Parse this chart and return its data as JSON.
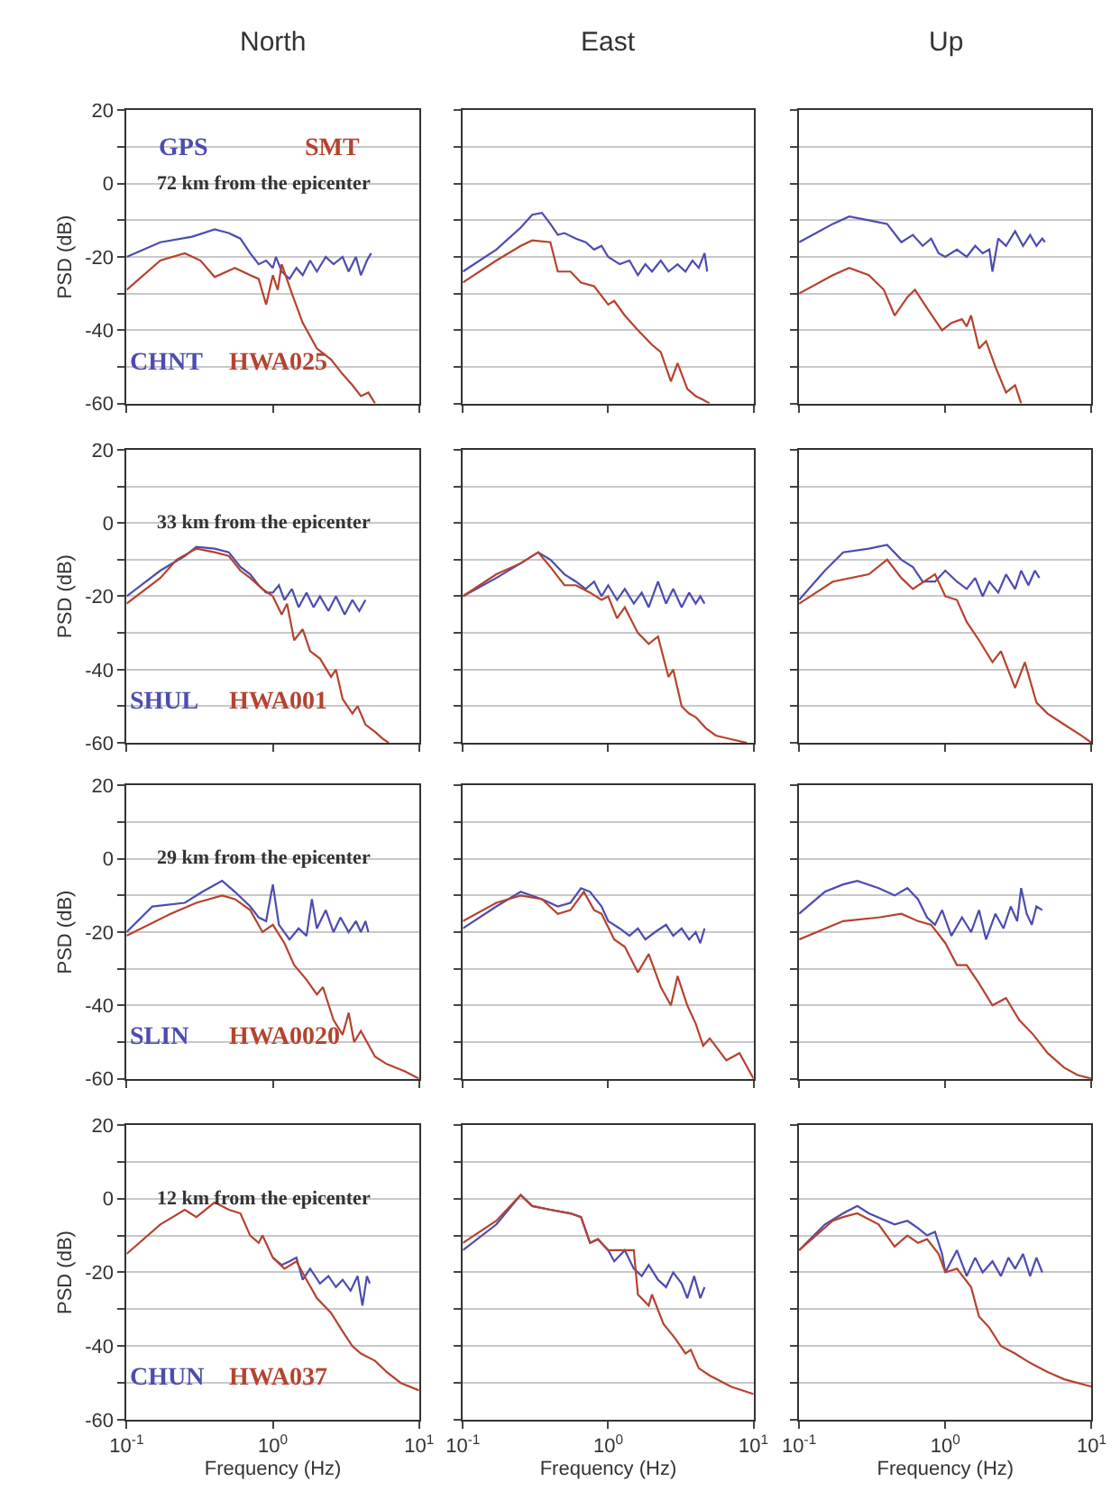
{
  "chart_data": [
    {
      "type": "line",
      "title": "North",
      "ylabel": "PSD (dB)",
      "log": "x",
      "grid": "y",
      "tick_labels": "y",
      "xlim": [
        0.1,
        10
      ],
      "ylim": [
        -60,
        20
      ],
      "xticks": [
        {
          "value": 0.1,
          "label": "10$^{-1}$"
        },
        {
          "value": 1,
          "label": "10$^{0}$"
        },
        {
          "value": 10,
          "label": "10$^{1}$"
        }
      ],
      "yticks": [
        -60,
        {
          "value": -50,
          "label": null
        },
        -40,
        {
          "value": -30,
          "label": null
        },
        -20,
        {
          "value": -10,
          "label": null
        },
        0,
        {
          "value": 10,
          "label": null
        },
        20
      ],
      "annotations": [
        "GPS",
        "SMT",
        "72 km from the epicenter"
      ],
      "series": [
        {
          "name": "CHNT",
          "color": "#4c4cb0",
          "x": [
            0.1,
            0.17,
            0.28,
            0.4,
            0.5,
            0.6,
            0.7,
            0.8,
            0.9,
            1.0,
            1.05,
            1.15,
            1.3,
            1.45,
            1.6,
            1.8,
            2.0,
            2.3,
            2.6,
            3.0,
            3.3,
            3.7,
            4.0,
            4.4,
            4.7
          ],
          "values": [
            -20,
            -16,
            -14.5,
            -12.5,
            -13.5,
            -15,
            -19,
            -22,
            -21,
            -23,
            -20,
            -24,
            -26,
            -23,
            -25,
            -21,
            -24,
            -20,
            -22,
            -20,
            -24,
            -20,
            -25,
            -21,
            -19
          ]
        },
        {
          "name": "HWA025",
          "color": "#b5432f",
          "x": [
            0.1,
            0.17,
            0.25,
            0.32,
            0.4,
            0.55,
            0.7,
            0.8,
            0.9,
            1.0,
            1.08,
            1.15,
            1.35,
            1.6,
            2.0,
            2.5,
            3.0,
            3.5,
            4.0,
            4.5,
            5.0
          ],
          "values": [
            -29,
            -21,
            -19,
            -21,
            -25.5,
            -23,
            -25,
            -26,
            -33,
            -25,
            -29,
            -22,
            -30,
            -38,
            -45,
            -48,
            -52,
            -55,
            -58,
            -57,
            -60
          ]
        }
      ]
    },
    {
      "type": "line",
      "title": "East",
      "log": "x",
      "grid": "y",
      "tick_labels": false,
      "xlim": [
        0.1,
        10
      ],
      "ylim": [
        -60,
        20
      ],
      "xticks": [
        {
          "value": 0.1,
          "label": "10$^{-1}$"
        },
        {
          "value": 1,
          "label": "10$^{0}$"
        },
        {
          "value": 10,
          "label": "10$^{1}$"
        }
      ],
      "yticks": [
        -60,
        {
          "value": -50,
          "label": null
        },
        -40,
        {
          "value": -30,
          "label": null
        },
        -20,
        {
          "value": -10,
          "label": null
        },
        0,
        {
          "value": 10,
          "label": null
        },
        20
      ],
      "series": [
        {
          "color": "#4c4cb0",
          "x": [
            0.1,
            0.17,
            0.25,
            0.3,
            0.35,
            0.4,
            0.45,
            0.5,
            0.6,
            0.7,
            0.8,
            0.9,
            1.0,
            1.2,
            1.4,
            1.6,
            1.8,
            2.0,
            2.3,
            2.6,
            3.0,
            3.4,
            3.8,
            4.2,
            4.6,
            4.8
          ],
          "values": [
            -24,
            -18,
            -12,
            -8.5,
            -8,
            -11,
            -14,
            -13.5,
            -15,
            -16,
            -18,
            -17,
            -20,
            -22,
            -21,
            -25,
            -22,
            -24,
            -21,
            -24,
            -22,
            -24,
            -21,
            -23,
            -19,
            -24
          ]
        },
        {
          "color": "#b5432f",
          "x": [
            0.1,
            0.17,
            0.25,
            0.3,
            0.4,
            0.45,
            0.55,
            0.65,
            0.8,
            1.0,
            1.1,
            1.3,
            1.6,
            2.0,
            2.3,
            2.7,
            3.0,
            3.5,
            4.0,
            4.5,
            5.0
          ],
          "values": [
            -27,
            -21,
            -17,
            -15.5,
            -16,
            -24,
            -24,
            -27,
            -28,
            -33,
            -32,
            -36,
            -40,
            -44,
            -46,
            -54,
            -49,
            -56,
            -58,
            -59,
            -60
          ]
        }
      ]
    },
    {
      "type": "line",
      "title": "Up",
      "log": "x",
      "grid": "y",
      "tick_labels": false,
      "xlim": [
        0.1,
        10
      ],
      "ylim": [
        -60,
        20
      ],
      "xticks": [
        {
          "value": 0.1,
          "label": "10$^{-1}$"
        },
        {
          "value": 1,
          "label": "10$^{0}$"
        },
        {
          "value": 10,
          "label": "10$^{1}$"
        }
      ],
      "yticks": [
        -60,
        {
          "value": -50,
          "label": null
        },
        -40,
        {
          "value": -30,
          "label": null
        },
        -20,
        {
          "value": -10,
          "label": null
        },
        0,
        {
          "value": 10,
          "label": null
        },
        20
      ],
      "series": [
        {
          "color": "#4c4cb0",
          "x": [
            0.1,
            0.17,
            0.22,
            0.3,
            0.4,
            0.5,
            0.6,
            0.7,
            0.8,
            0.9,
            1.0,
            1.2,
            1.4,
            1.6,
            1.8,
            2.0,
            2.1,
            2.3,
            2.6,
            3.0,
            3.4,
            3.8,
            4.2,
            4.6,
            4.8
          ],
          "values": [
            -16,
            -11,
            -9,
            -10,
            -11,
            -16,
            -14,
            -17,
            -15,
            -19,
            -20,
            -18,
            -20,
            -17,
            -19,
            -18,
            -24,
            -15,
            -17,
            -13,
            -17,
            -14,
            -17,
            -15,
            -16
          ]
        },
        {
          "color": "#b5432f",
          "x": [
            0.1,
            0.17,
            0.22,
            0.3,
            0.38,
            0.45,
            0.55,
            0.62,
            0.75,
            0.95,
            1.1,
            1.3,
            1.4,
            1.5,
            1.7,
            1.9,
            2.2,
            2.6,
            3.0,
            3.3
          ],
          "values": [
            -30,
            -25,
            -23,
            -25,
            -29,
            -36,
            -31,
            -29,
            -34,
            -40,
            -38,
            -37,
            -39,
            -36,
            -45,
            -43,
            -50,
            -57,
            -55,
            -60
          ]
        }
      ]
    },
    {
      "type": "line",
      "ylabel": "PSD (dB)",
      "log": "x",
      "grid": "y",
      "tick_labels": "y",
      "xlim": [
        0.1,
        10
      ],
      "ylim": [
        -60,
        20
      ],
      "xticks": [
        {
          "value": 0.1,
          "label": "10$^{-1}$"
        },
        {
          "value": 1,
          "label": "10$^{0}$"
        },
        {
          "value": 10,
          "label": "10$^{1}$"
        }
      ],
      "yticks": [
        -60,
        {
          "value": -50,
          "label": null
        },
        -40,
        {
          "value": -30,
          "label": null
        },
        -20,
        {
          "value": -10,
          "label": null
        },
        0,
        {
          "value": 10,
          "label": null
        },
        20
      ],
      "annotations": [
        "33 km from the epicenter"
      ],
      "series": [
        {
          "name": "SHUL",
          "color": "#4c4cb0",
          "x": [
            0.1,
            0.17,
            0.25,
            0.3,
            0.4,
            0.5,
            0.6,
            0.7,
            0.8,
            0.9,
            1.0,
            1.1,
            1.2,
            1.35,
            1.5,
            1.7,
            1.9,
            2.1,
            2.4,
            2.7,
            3.1,
            3.5,
            3.9,
            4.3
          ],
          "values": [
            -20,
            -13,
            -9,
            -6.5,
            -7,
            -8,
            -12,
            -14,
            -17,
            -19,
            -19,
            -17,
            -21,
            -18,
            -23,
            -19,
            -23,
            -20,
            -24,
            -20,
            -25,
            -21,
            -24,
            -21
          ]
        },
        {
          "name": "HWA001",
          "color": "#b5432f",
          "x": [
            0.1,
            0.17,
            0.22,
            0.3,
            0.4,
            0.5,
            0.6,
            0.7,
            0.85,
            1.0,
            1.15,
            1.25,
            1.4,
            1.6,
            1.8,
            2.1,
            2.5,
            2.7,
            3.0,
            3.5,
            3.8,
            4.3,
            5.0,
            5.7,
            6.2
          ],
          "values": [
            -22,
            -15,
            -10,
            -7,
            -8,
            -9,
            -13,
            -15,
            -18,
            -20,
            -25,
            -22,
            -32,
            -29,
            -35,
            -37,
            -42,
            -40,
            -48,
            -52,
            -50,
            -55,
            -57,
            -59,
            -60
          ]
        }
      ]
    },
    {
      "type": "line",
      "log": "x",
      "grid": "y",
      "tick_labels": false,
      "xlim": [
        0.1,
        10
      ],
      "ylim": [
        -60,
        20
      ],
      "xticks": [
        {
          "value": 0.1,
          "label": "10$^{-1}$"
        },
        {
          "value": 1,
          "label": "10$^{0}$"
        },
        {
          "value": 10,
          "label": "10$^{1}$"
        }
      ],
      "yticks": [
        -60,
        {
          "value": -50,
          "label": null
        },
        -40,
        {
          "value": -30,
          "label": null
        },
        -20,
        {
          "value": -10,
          "label": null
        },
        0,
        {
          "value": 10,
          "label": null
        },
        20
      ],
      "series": [
        {
          "color": "#4c4cb0",
          "x": [
            0.1,
            0.17,
            0.25,
            0.33,
            0.4,
            0.5,
            0.6,
            0.7,
            0.8,
            0.9,
            1.0,
            1.15,
            1.3,
            1.5,
            1.7,
            1.9,
            2.2,
            2.5,
            2.8,
            3.2,
            3.6,
            4.0,
            4.3,
            4.6
          ],
          "values": [
            -20,
            -15,
            -11,
            -8,
            -10,
            -14,
            -16,
            -18,
            -16,
            -20,
            -17,
            -21,
            -18,
            -22,
            -19,
            -23,
            -16,
            -22,
            -18,
            -23,
            -19,
            -22,
            -20,
            -22
          ]
        },
        {
          "color": "#b5432f",
          "x": [
            0.1,
            0.17,
            0.25,
            0.33,
            0.4,
            0.5,
            0.6,
            0.75,
            0.9,
            1.0,
            1.15,
            1.3,
            1.6,
            1.9,
            2.2,
            2.6,
            2.8,
            3.2,
            3.6,
            4.0,
            4.7,
            5.5,
            7,
            9
          ],
          "values": [
            -20,
            -14,
            -11,
            -8,
            -12,
            -17,
            -17,
            -19,
            -21,
            -20,
            -26,
            -23,
            -30,
            -33,
            -31,
            -42,
            -40,
            -50,
            -52,
            -53,
            -56,
            -58,
            -59,
            -60
          ]
        }
      ]
    },
    {
      "type": "line",
      "log": "x",
      "grid": "y",
      "tick_labels": false,
      "xlim": [
        0.1,
        10
      ],
      "ylim": [
        -60,
        20
      ],
      "xticks": [
        {
          "value": 0.1,
          "label": "10$^{-1}$"
        },
        {
          "value": 1,
          "label": "10$^{0}$"
        },
        {
          "value": 10,
          "label": "10$^{1}$"
        }
      ],
      "yticks": [
        -60,
        {
          "value": -50,
          "label": null
        },
        -40,
        {
          "value": -30,
          "label": null
        },
        -20,
        {
          "value": -10,
          "label": null
        },
        0,
        {
          "value": 10,
          "label": null
        },
        20
      ],
      "series": [
        {
          "color": "#4c4cb0",
          "x": [
            0.1,
            0.15,
            0.2,
            0.3,
            0.4,
            0.5,
            0.6,
            0.7,
            0.85,
            1.0,
            1.2,
            1.4,
            1.6,
            1.8,
            2.0,
            2.3,
            2.6,
            3.0,
            3.3,
            3.7,
            4.1,
            4.4
          ],
          "values": [
            -21,
            -13,
            -8,
            -7,
            -6,
            -10,
            -12,
            -16,
            -16,
            -13,
            -16,
            -18,
            -15,
            -20,
            -16,
            -19,
            -14,
            -18,
            -13,
            -17,
            -13,
            -15
          ]
        },
        {
          "color": "#b5432f",
          "x": [
            0.1,
            0.17,
            0.3,
            0.4,
            0.5,
            0.6,
            0.85,
            1.0,
            1.2,
            1.4,
            1.7,
            2.1,
            2.4,
            3.0,
            3.5,
            4.2,
            5.0,
            6.5,
            8.5,
            10
          ],
          "values": [
            -22,
            -16,
            -14,
            -10,
            -15,
            -18,
            -14,
            -20,
            -21,
            -27,
            -32,
            -38,
            -35,
            -45,
            -38,
            -49,
            -52,
            -55,
            -58,
            -60
          ]
        }
      ]
    },
    {
      "type": "line",
      "ylabel": "PSD (dB)",
      "log": "x",
      "grid": "y",
      "tick_labels": "y",
      "xlim": [
        0.1,
        10
      ],
      "ylim": [
        -60,
        20
      ],
      "xticks": [
        {
          "value": 0.1,
          "label": "10$^{-1}$"
        },
        {
          "value": 1,
          "label": "10$^{0}$"
        },
        {
          "value": 10,
          "label": "10$^{1}$"
        }
      ],
      "yticks": [
        -60,
        {
          "value": -50,
          "label": null
        },
        -40,
        {
          "value": -30,
          "label": null
        },
        -20,
        {
          "value": -10,
          "label": null
        },
        0,
        {
          "value": 10,
          "label": null
        },
        20
      ],
      "annotations": [
        "29 km from the epicenter"
      ],
      "series": [
        {
          "name": "SLIN",
          "color": "#4c4cb0",
          "x": [
            0.1,
            0.15,
            0.25,
            0.33,
            0.45,
            0.55,
            0.7,
            0.8,
            0.9,
            1.0,
            1.1,
            1.3,
            1.5,
            1.7,
            1.85,
            2.0,
            2.3,
            2.6,
            2.9,
            3.3,
            3.7,
            4.0,
            4.3,
            4.5
          ],
          "values": [
            -20,
            -13,
            -12,
            -9,
            -6,
            -9,
            -13,
            -16,
            -17,
            -7,
            -18,
            -22,
            -19,
            -21,
            -11,
            -19,
            -14,
            -20,
            -16,
            -20,
            -17,
            -20,
            -17,
            -20
          ]
        },
        {
          "name": "HWA0020",
          "color": "#b5432f",
          "x": [
            0.1,
            0.2,
            0.3,
            0.45,
            0.55,
            0.7,
            0.85,
            1.0,
            1.2,
            1.4,
            1.7,
            2.0,
            2.2,
            2.6,
            3.0,
            3.3,
            3.6,
            4.0,
            5.0,
            6.0,
            8,
            10
          ],
          "values": [
            -21,
            -15,
            -12,
            -10,
            -11,
            -14,
            -20,
            -18,
            -23,
            -29,
            -33,
            -37,
            -35,
            -44,
            -48,
            -42,
            -50,
            -47,
            -54,
            -56,
            -58,
            -60
          ]
        }
      ]
    },
    {
      "type": "line",
      "log": "x",
      "grid": "y",
      "tick_labels": false,
      "xlim": [
        0.1,
        10
      ],
      "ylim": [
        -60,
        20
      ],
      "xticks": [
        {
          "value": 0.1,
          "label": "10$^{-1}$"
        },
        {
          "value": 1,
          "label": "10$^{0}$"
        },
        {
          "value": 10,
          "label": "10$^{1}$"
        }
      ],
      "yticks": [
        -60,
        {
          "value": -50,
          "label": null
        },
        -40,
        {
          "value": -30,
          "label": null
        },
        -20,
        {
          "value": -10,
          "label": null
        },
        0,
        {
          "value": 10,
          "label": null
        },
        20
      ],
      "series": [
        {
          "color": "#4c4cb0",
          "x": [
            0.1,
            0.17,
            0.25,
            0.35,
            0.45,
            0.55,
            0.65,
            0.75,
            0.9,
            1.0,
            1.2,
            1.4,
            1.6,
            1.8,
            2.1,
            2.5,
            2.8,
            3.2,
            3.6,
            4.0,
            4.3,
            4.6
          ],
          "values": [
            -19,
            -13,
            -9,
            -11,
            -13,
            -12,
            -8,
            -9,
            -13,
            -17,
            -19,
            -21,
            -19,
            -22,
            -20,
            -18,
            -21,
            -19,
            -22,
            -20,
            -23,
            -19
          ]
        },
        {
          "color": "#b5432f",
          "x": [
            0.1,
            0.17,
            0.25,
            0.35,
            0.45,
            0.55,
            0.68,
            0.8,
            0.9,
            1.1,
            1.3,
            1.6,
            1.9,
            2.3,
            2.7,
            3.0,
            3.5,
            4.0,
            4.5,
            5.0,
            6.5,
            8,
            10
          ],
          "values": [
            -17,
            -12,
            -10,
            -11,
            -15,
            -14,
            -9,
            -14,
            -15,
            -22,
            -24,
            -31,
            -26,
            -35,
            -40,
            -32,
            -40,
            -45,
            -51,
            -49,
            -55,
            -53,
            -60
          ]
        }
      ]
    },
    {
      "type": "line",
      "log": "x",
      "grid": "y",
      "tick_labels": false,
      "xlim": [
        0.1,
        10
      ],
      "ylim": [
        -60,
        20
      ],
      "xticks": [
        {
          "value": 0.1,
          "label": "10$^{-1}$"
        },
        {
          "value": 1,
          "label": "10$^{0}$"
        },
        {
          "value": 10,
          "label": "10$^{1}$"
        }
      ],
      "yticks": [
        -60,
        {
          "value": -50,
          "label": null
        },
        -40,
        {
          "value": -30,
          "label": null
        },
        -20,
        {
          "value": -10,
          "label": null
        },
        0,
        {
          "value": 10,
          "label": null
        },
        20
      ],
      "series": [
        {
          "color": "#4c4cb0",
          "x": [
            0.1,
            0.15,
            0.2,
            0.25,
            0.35,
            0.45,
            0.55,
            0.65,
            0.75,
            0.85,
            0.95,
            1.1,
            1.3,
            1.5,
            1.7,
            1.9,
            2.2,
            2.5,
            2.8,
            3.1,
            3.3,
            3.6,
            3.9,
            4.2,
            4.6
          ],
          "values": [
            -15,
            -9,
            -7,
            -6,
            -8,
            -10,
            -8,
            -11,
            -16,
            -18,
            -14,
            -21,
            -16,
            -20,
            -14,
            -22,
            -15,
            -19,
            -13,
            -17,
            -8,
            -15,
            -18,
            -13,
            -14
          ]
        },
        {
          "color": "#b5432f",
          "x": [
            0.1,
            0.2,
            0.35,
            0.5,
            0.65,
            0.8,
            1.0,
            1.2,
            1.4,
            1.7,
            2.1,
            2.6,
            3.2,
            4.0,
            5.0,
            6.5,
            8,
            10
          ],
          "values": [
            -22,
            -17,
            -16,
            -15,
            -17,
            -18,
            -23,
            -29,
            -29,
            -34,
            -40,
            -38,
            -44,
            -48,
            -53,
            -57,
            -59,
            -60
          ]
        }
      ]
    },
    {
      "type": "line",
      "ylabel": "PSD (dB)",
      "xlabel": "Frequency (Hz)",
      "log": "x",
      "grid": "y",
      "xlim": [
        0.1,
        10
      ],
      "ylim": [
        -60,
        20
      ],
      "xticks": [
        {
          "value": 0.1,
          "label": "10$^{-1}$"
        },
        {
          "value": 1,
          "label": "10$^{0}$"
        },
        {
          "value": 10,
          "label": "10$^{1}$"
        }
      ],
      "yticks": [
        -60,
        {
          "value": -50,
          "label": null
        },
        -40,
        {
          "value": -30,
          "label": null
        },
        -20,
        {
          "value": -10,
          "label": null
        },
        0,
        {
          "value": 10,
          "label": null
        },
        20
      ],
      "annotations": [
        "12 km from the epicenter"
      ],
      "series": [
        {
          "name": "CHUN",
          "color": "#4c4cb0",
          "x": [
            1.0,
            1.15,
            1.3,
            1.45,
            1.6,
            1.8,
            2.1,
            2.4,
            2.7,
            3.0,
            3.4,
            3.8,
            4.1,
            4.4,
            4.6
          ],
          "values": [
            -16,
            -18,
            -17,
            -16,
            -22,
            -19,
            -23,
            -21,
            -24,
            -22,
            -25,
            -21,
            -29,
            -21,
            -23
          ]
        },
        {
          "name": "HWA037",
          "color": "#b5432f",
          "x": [
            0.1,
            0.17,
            0.25,
            0.3,
            0.4,
            0.5,
            0.6,
            0.7,
            0.8,
            0.85,
            1.0,
            1.2,
            1.45,
            1.7,
            2.0,
            2.5,
            3.0,
            3.5,
            4.0,
            5.0,
            6.0,
            7.5,
            10
          ],
          "values": [
            -15,
            -7,
            -3,
            -5,
            -1,
            -3,
            -4,
            -10,
            -12,
            -10,
            -16,
            -19,
            -17,
            -22,
            -27,
            -31,
            -36,
            -40,
            -42,
            -44,
            -47,
            -50,
            -52
          ]
        }
      ]
    },
    {
      "type": "line",
      "xlabel": "Frequency (Hz)",
      "log": "x",
      "grid": "y",
      "tick_labels": "x",
      "xlim": [
        0.1,
        10
      ],
      "ylim": [
        -60,
        20
      ],
      "xticks": [
        {
          "value": 0.1,
          "label": "10$^{-1}$"
        },
        {
          "value": 1,
          "label": "10$^{0}$"
        },
        {
          "value": 10,
          "label": "10$^{1}$"
        }
      ],
      "yticks": [
        -60,
        {
          "value": -50,
          "label": null
        },
        -40,
        {
          "value": -30,
          "label": null
        },
        -20,
        {
          "value": -10,
          "label": null
        },
        0,
        {
          "value": 10,
          "label": null
        },
        20
      ],
      "series": [
        {
          "color": "#4c4cb0",
          "x": [
            0.1,
            0.17,
            0.25,
            0.3,
            0.4,
            0.55,
            0.65,
            0.75,
            0.85,
            1.0,
            1.1,
            1.3,
            1.5,
            1.7,
            1.9,
            2.2,
            2.5,
            2.8,
            3.2,
            3.5,
            3.9,
            4.3,
            4.6
          ],
          "values": [
            -14,
            -7,
            1,
            -2,
            -3,
            -4,
            -5,
            -12,
            -11,
            -14,
            -17,
            -14,
            -19,
            -21,
            -18,
            -22,
            -24,
            -20,
            -23,
            -27,
            -21,
            -27,
            -24
          ]
        },
        {
          "color": "#b5432f",
          "x": [
            0.1,
            0.17,
            0.25,
            0.3,
            0.4,
            0.55,
            0.65,
            0.75,
            0.85,
            1.0,
            1.2,
            1.5,
            1.6,
            1.9,
            2.0,
            2.4,
            2.9,
            3.4,
            3.7,
            4.2,
            5.0,
            7.0,
            10
          ],
          "values": [
            -12,
            -6,
            1,
            -2,
            -3,
            -4,
            -5,
            -12,
            -11,
            -14,
            -14,
            -14,
            -26,
            -29,
            -26,
            -34,
            -38,
            -42,
            -41,
            -46,
            -48,
            -51,
            -53
          ]
        }
      ]
    },
    {
      "type": "line",
      "xlabel": "Frequency (Hz)",
      "log": "x",
      "grid": "y",
      "tick_labels": "x",
      "xlim": [
        0.1,
        10
      ],
      "ylim": [
        -60,
        20
      ],
      "xticks": [
        {
          "value": 0.1,
          "label": "10$^{-1}$"
        },
        {
          "value": 1,
          "label": "10$^{0}$"
        },
        {
          "value": 10,
          "label": "10$^{1}$"
        }
      ],
      "yticks": [
        -60,
        {
          "value": -50,
          "label": null
        },
        -40,
        {
          "value": -30,
          "label": null
        },
        -20,
        {
          "value": -10,
          "label": null
        },
        0,
        {
          "value": 10,
          "label": null
        },
        20
      ],
      "series": [
        {
          "color": "#4c4cb0",
          "x": [
            0.1,
            0.15,
            0.2,
            0.25,
            0.3,
            0.45,
            0.55,
            0.65,
            0.75,
            0.85,
            0.95,
            1.0,
            1.2,
            1.4,
            1.6,
            1.8,
            2.1,
            2.4,
            2.7,
            3.0,
            3.4,
            3.8,
            4.2,
            4.6
          ],
          "values": [
            -14,
            -7,
            -4,
            -2,
            -4,
            -7,
            -6,
            -8,
            -10,
            -9,
            -15,
            -20,
            -14,
            -21,
            -16,
            -20,
            -17,
            -21,
            -16,
            -19,
            -15,
            -21,
            -16,
            -20
          ]
        },
        {
          "color": "#b5432f",
          "x": [
            0.1,
            0.17,
            0.2,
            0.25,
            0.35,
            0.45,
            0.55,
            0.65,
            0.75,
            0.9,
            1.0,
            1.2,
            1.5,
            1.7,
            2.0,
            2.4,
            3.0,
            3.6,
            4.0,
            5.0,
            6.5,
            10
          ],
          "values": [
            -14,
            -6,
            -5,
            -4,
            -7,
            -13,
            -10,
            -12,
            -11,
            -15,
            -20,
            -19,
            -24,
            -32,
            -35,
            -40,
            -42,
            -44,
            -45,
            -47,
            -49,
            -51
          ]
        }
      ]
    }
  ]
}
